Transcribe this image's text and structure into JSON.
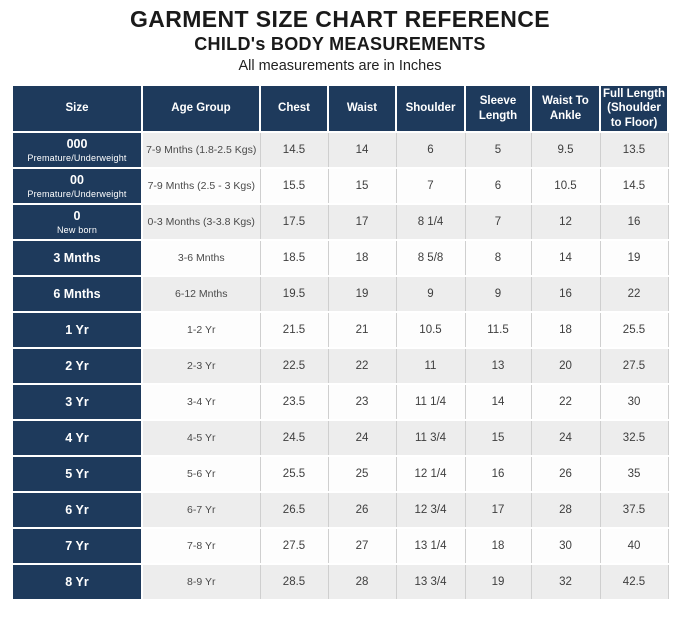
{
  "page": {
    "title": "GARMENT SIZE CHART REFERENCE",
    "subtitle": "CHILD's BODY MEASUREMENTS",
    "note": "All measurements are in Inches"
  },
  "colors": {
    "navy": "#1e3a5c",
    "row_gray": "#ededed",
    "row_white": "#fdfdfd",
    "grid_line": "#cfcfcf",
    "body_text": "#3e3e3e"
  },
  "table": {
    "columns": [
      {
        "label": "Size"
      },
      {
        "label": "Age Group"
      },
      {
        "label": "Chest"
      },
      {
        "label": "Waist"
      },
      {
        "label": "Shoulder"
      },
      {
        "label": "Sleeve Length"
      },
      {
        "label": "Waist To Ankle"
      },
      {
        "label": "Full Length (Shoulder to Floor)"
      }
    ],
    "rows": [
      {
        "size": "000",
        "size_note": "Premature/Underweight",
        "age_group": "7-9 Mnths (1.8-2.5 Kgs)",
        "chest": "14.5",
        "waist": "14",
        "shoulder": "6",
        "sleeve_length": "5",
        "waist_to_ankle": "9.5",
        "full_length": "13.5"
      },
      {
        "size": "00",
        "size_note": "Premature/Underweight",
        "age_group": "7-9 Mnths (2.5 - 3 Kgs)",
        "chest": "15.5",
        "waist": "15",
        "shoulder": "7",
        "sleeve_length": "6",
        "waist_to_ankle": "10.5",
        "full_length": "14.5"
      },
      {
        "size": "0",
        "size_note": "New born",
        "age_group": "0-3 Months (3-3.8 Kgs)",
        "chest": "17.5",
        "waist": "17",
        "shoulder": "8 1/4",
        "sleeve_length": "7",
        "waist_to_ankle": "12",
        "full_length": "16"
      },
      {
        "size": "3 Mnths",
        "size_note": "",
        "age_group": "3-6 Mnths",
        "chest": "18.5",
        "waist": "18",
        "shoulder": "8 5/8",
        "sleeve_length": "8",
        "waist_to_ankle": "14",
        "full_length": "19"
      },
      {
        "size": "6 Mnths",
        "size_note": "",
        "age_group": "6-12 Mnths",
        "chest": "19.5",
        "waist": "19",
        "shoulder": "9",
        "sleeve_length": "9",
        "waist_to_ankle": "16",
        "full_length": "22"
      },
      {
        "size": "1 Yr",
        "size_note": "",
        "age_group": "1-2 Yr",
        "chest": "21.5",
        "waist": "21",
        "shoulder": "10.5",
        "sleeve_length": "11.5",
        "waist_to_ankle": "18",
        "full_length": "25.5"
      },
      {
        "size": "2 Yr",
        "size_note": "",
        "age_group": "2-3 Yr",
        "chest": "22.5",
        "waist": "22",
        "shoulder": "11",
        "sleeve_length": "13",
        "waist_to_ankle": "20",
        "full_length": "27.5"
      },
      {
        "size": "3 Yr",
        "size_note": "",
        "age_group": "3-4 Yr",
        "chest": "23.5",
        "waist": "23",
        "shoulder": "11 1/4",
        "sleeve_length": "14",
        "waist_to_ankle": "22",
        "full_length": "30"
      },
      {
        "size": "4 Yr",
        "size_note": "",
        "age_group": "4-5 Yr",
        "chest": "24.5",
        "waist": "24",
        "shoulder": "11 3/4",
        "sleeve_length": "15",
        "waist_to_ankle": "24",
        "full_length": "32.5"
      },
      {
        "size": "5 Yr",
        "size_note": "",
        "age_group": "5-6 Yr",
        "chest": "25.5",
        "waist": "25",
        "shoulder": "12 1/4",
        "sleeve_length": "16",
        "waist_to_ankle": "26",
        "full_length": "35"
      },
      {
        "size": "6 Yr",
        "size_note": "",
        "age_group": "6-7 Yr",
        "chest": "26.5",
        "waist": "26",
        "shoulder": "12 3/4",
        "sleeve_length": "17",
        "waist_to_ankle": "28",
        "full_length": "37.5"
      },
      {
        "size": "7 Yr",
        "size_note": "",
        "age_group": "7-8 Yr",
        "chest": "27.5",
        "waist": "27",
        "shoulder": "13 1/4",
        "sleeve_length": "18",
        "waist_to_ankle": "30",
        "full_length": "40"
      },
      {
        "size": "8 Yr",
        "size_note": "",
        "age_group": "8-9 Yr",
        "chest": "28.5",
        "waist": "28",
        "shoulder": "13 3/4",
        "sleeve_length": "19",
        "waist_to_ankle": "32",
        "full_length": "42.5"
      }
    ]
  }
}
